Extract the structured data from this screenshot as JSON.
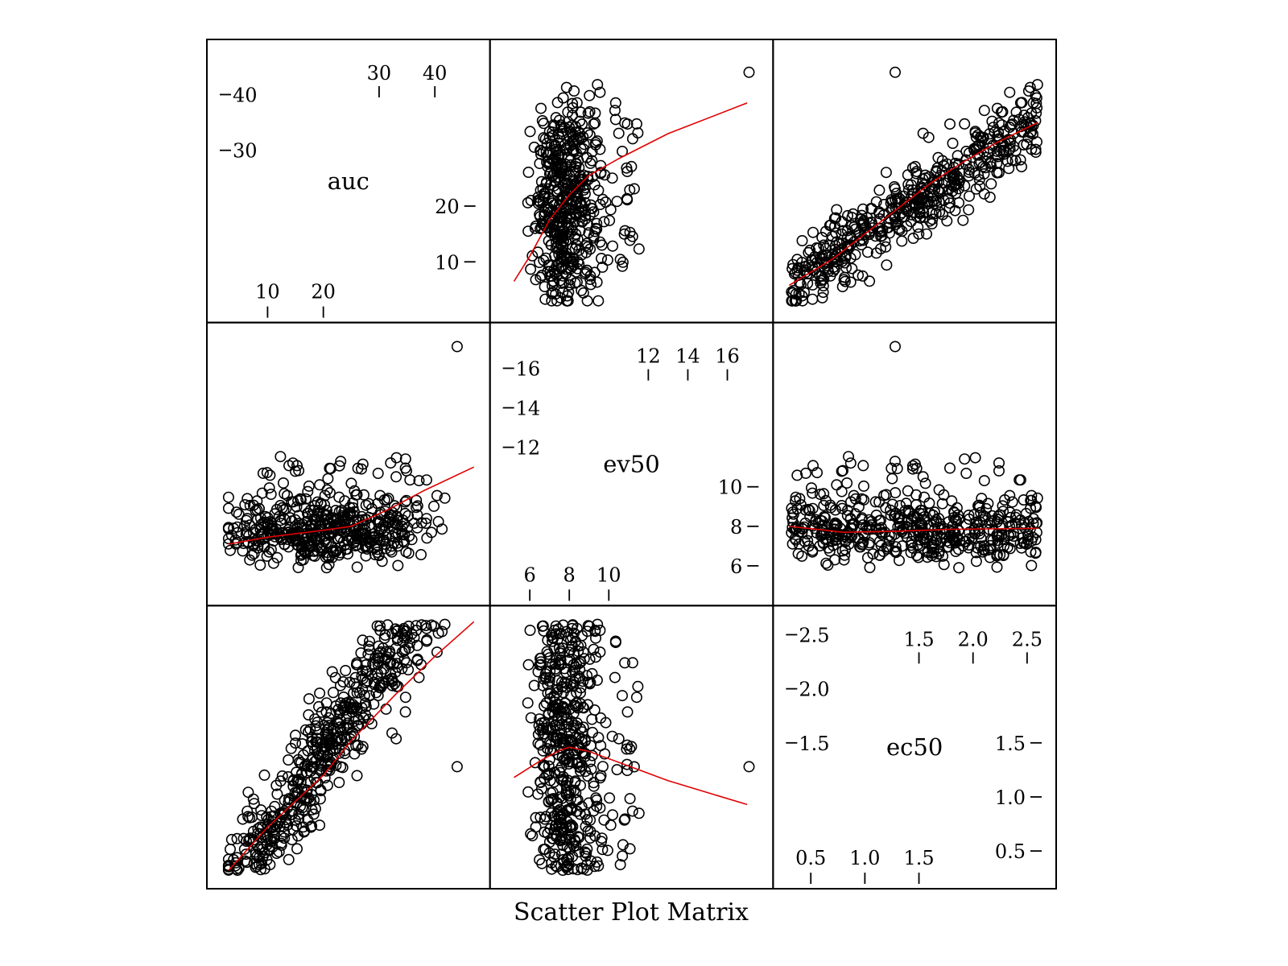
{
  "chart_data": {
    "type": "scatter",
    "title": "Scatter Plot Matrix",
    "variables": [
      "auc",
      "ev50",
      "ec50"
    ],
    "ranges": {
      "auc": [
        2.0,
        47.0
      ],
      "ev50": [
        4.8,
        17.5
      ],
      "ec50": [
        0.3,
        2.62
      ]
    },
    "ticks": {
      "auc": {
        "top": [
          30,
          40
        ],
        "right": [
          40,
          30
        ],
        "left": [
          20,
          10
        ],
        "bottom": [
          10,
          20
        ]
      },
      "ev50": {
        "top": [
          12,
          14,
          16
        ],
        "right": [
          16,
          14,
          12
        ],
        "left": [
          10,
          8,
          6
        ],
        "bottom": [
          6,
          8,
          10
        ]
      },
      "ec50": {
        "top": [
          1.5,
          2.0,
          2.5
        ],
        "right": [
          2.5,
          2.0,
          1.5
        ],
        "left": [
          1.5,
          1.0,
          0.5
        ],
        "bottom": [
          0.5,
          1.0,
          1.5
        ]
      }
    },
    "tick_text": {
      "auc": {
        "top": [
          "30",
          "40"
        ],
        "right": [
          "40",
          "30"
        ],
        "left": [
          "20",
          "10"
        ],
        "bottom": [
          "10",
          "20"
        ]
      },
      "ev50": {
        "top": [
          "12",
          "14",
          "16"
        ],
        "right": [
          "16",
          "14",
          "12"
        ],
        "left": [
          "10",
          "8",
          "6"
        ],
        "bottom": [
          "6",
          "8",
          "10"
        ]
      },
      "ec50": {
        "top": [
          "1.5",
          "2.0",
          "2.5"
        ],
        "right": [
          "2.5",
          "2.0",
          "1.5"
        ],
        "left": [
          "1.5",
          "1.0",
          "0.5"
        ],
        "bottom": [
          "0.5",
          "1.0",
          "1.5"
        ]
      }
    },
    "n_points": 500,
    "outlier": {
      "auc": 44.0,
      "ev50": 17.1,
      "ec50": 1.28
    },
    "smoothers": {
      "auc_vs_ec50": [
        [
          0.3,
          5.8
        ],
        [
          0.7,
          10.5
        ],
        [
          1.0,
          15.0
        ],
        [
          1.3,
          19.5
        ],
        [
          1.6,
          24.0
        ],
        [
          1.9,
          27.8
        ],
        [
          2.2,
          31.2
        ],
        [
          2.6,
          35.0
        ]
      ],
      "auc_vs_ev50": [
        [
          5.2,
          6.5
        ],
        [
          6.0,
          11.0
        ],
        [
          7.0,
          17.5
        ],
        [
          8.0,
          22.0
        ],
        [
          9.0,
          25.5
        ],
        [
          10.5,
          28.5
        ],
        [
          13.0,
          33.0
        ],
        [
          17.0,
          38.5
        ]
      ],
      "ev50_vs_ec50": [
        [
          0.3,
          8.0
        ],
        [
          0.8,
          7.7
        ],
        [
          1.3,
          7.75
        ],
        [
          1.8,
          7.85
        ],
        [
          2.6,
          7.9
        ]
      ],
      "ev50_vs_auc": [
        [
          3.0,
          7.1
        ],
        [
          10.0,
          7.45
        ],
        [
          20.0,
          7.8
        ],
        [
          25.0,
          8.0
        ],
        [
          32.0,
          8.9
        ],
        [
          38.0,
          9.8
        ],
        [
          47.0,
          11.0
        ]
      ],
      "ec50_vs_ev50": [
        [
          5.2,
          1.18
        ],
        [
          6.5,
          1.33
        ],
        [
          7.5,
          1.43
        ],
        [
          8.0,
          1.46
        ],
        [
          9.0,
          1.42
        ],
        [
          10.5,
          1.32
        ],
        [
          13.0,
          1.15
        ],
        [
          17.0,
          0.93
        ]
      ],
      "ec50_vs_auc": [
        [
          3.0,
          0.32
        ],
        [
          10.0,
          0.72
        ],
        [
          20.0,
          1.2
        ],
        [
          25.0,
          1.52
        ],
        [
          33.0,
          1.95
        ],
        [
          40.0,
          2.3
        ],
        [
          47.0,
          2.62
        ]
      ]
    },
    "point_color": "#000000",
    "smoother_color": "#e00000",
    "grid": false,
    "legend": "none"
  }
}
